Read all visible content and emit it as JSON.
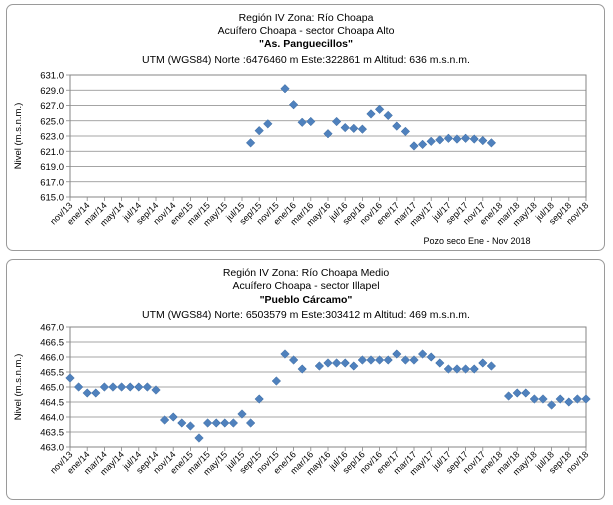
{
  "chart_data": [
    {
      "type": "scatter",
      "title_lines": [
        "Región IV  Zona: Río Choapa",
        "Acuífero Choapa - sector Choapa Alto"
      ],
      "well_name": "\"As. Panguecillos\"",
      "utm_line": "UTM (WGS84) Norte :6476460 m   Este:322861 m   Altitud: 636 m.s.n.m.",
      "ylabel": "Nivel (m.s.n.m.)",
      "xlabel": "",
      "annotation": "Pozo seco  Ene - Nov 2018",
      "ylim": [
        615.0,
        631.0
      ],
      "y_ticks": [
        "631.0",
        "629.0",
        "627.0",
        "625.0",
        "623.0",
        "621.0",
        "619.0",
        "617.0",
        "615.0"
      ],
      "x_ticks": [
        "nov/13",
        "ene/14",
        "mar/14",
        "may/14",
        "jul/14",
        "sep/14",
        "nov/14",
        "ene/15",
        "mar/15",
        "may/15",
        "jul/15",
        "sep/15",
        "nov/15",
        "ene/16",
        "mar/16",
        "may/16",
        "jul/16",
        "sep/16",
        "nov/16",
        "ene/17",
        "mar/17",
        "may/17",
        "jul/17",
        "sep/17",
        "nov/17",
        "ene/18",
        "mar/18",
        "may/18",
        "jul/18",
        "sep/18",
        "nov/18"
      ],
      "grid": true,
      "marker_color": "#4f81bd",
      "points": [
        {
          "x": "ago/15",
          "y": 622.1
        },
        {
          "x": "sep/15",
          "y": 623.7
        },
        {
          "x": "oct/15",
          "y": 624.6
        },
        {
          "x": "dic/15",
          "y": 629.2
        },
        {
          "x": "ene/16",
          "y": 627.1
        },
        {
          "x": "feb/16",
          "y": 624.8
        },
        {
          "x": "mar/16",
          "y": 624.9
        },
        {
          "x": "may/16",
          "y": 623.3
        },
        {
          "x": "jun/16",
          "y": 624.9
        },
        {
          "x": "jul/16",
          "y": 624.1
        },
        {
          "x": "ago/16",
          "y": 624.0
        },
        {
          "x": "sep/16",
          "y": 623.9
        },
        {
          "x": "oct/16",
          "y": 625.9
        },
        {
          "x": "nov/16",
          "y": 626.5
        },
        {
          "x": "dic/16",
          "y": 625.7
        },
        {
          "x": "ene/17",
          "y": 624.3
        },
        {
          "x": "feb/17",
          "y": 623.6
        },
        {
          "x": "mar/17",
          "y": 621.7
        },
        {
          "x": "abr/17",
          "y": 621.9
        },
        {
          "x": "may/17",
          "y": 622.3
        },
        {
          "x": "jun/17",
          "y": 622.5
        },
        {
          "x": "jul/17",
          "y": 622.7
        },
        {
          "x": "ago/17",
          "y": 622.6
        },
        {
          "x": "sep/17",
          "y": 622.7
        },
        {
          "x": "oct/17",
          "y": 622.6
        },
        {
          "x": "nov/17",
          "y": 622.4
        },
        {
          "x": "dic/17",
          "y": 622.1
        }
      ]
    },
    {
      "type": "scatter",
      "title_lines": [
        "Región IV  Zona: Río Choapa Medio",
        "Acuífero Choapa - sector Illapel"
      ],
      "well_name": "\"Pueblo Cárcamo\"",
      "utm_line": "UTM (WGS84) Norte: 6503579 m   Este:303412 m   Altitud: 469 m.s.n.m.",
      "ylabel": "Nivel (m.s.n.m.)",
      "xlabel": "",
      "annotation": "",
      "ylim": [
        463.0,
        467.0
      ],
      "y_ticks": [
        "467.0",
        "466.5",
        "466.0",
        "465.5",
        "465.0",
        "464.5",
        "464.0",
        "463.5",
        "463.0"
      ],
      "x_ticks": [
        "nov/13",
        "ene/14",
        "mar/14",
        "may/14",
        "jul/14",
        "sep/14",
        "nov/14",
        "ene/15",
        "mar/15",
        "may/15",
        "jul/15",
        "sep/15",
        "nov/15",
        "ene/16",
        "mar/16",
        "may/16",
        "jul/16",
        "sep/16",
        "nov/16",
        "ene/17",
        "mar/17",
        "may/17",
        "jul/17",
        "sep/17",
        "nov/17",
        "ene/18",
        "mar/18",
        "may/18",
        "jul/18",
        "sep/18",
        "nov/18"
      ],
      "grid": true,
      "marker_color": "#4f81bd",
      "points": [
        {
          "x": "nov/13",
          "y": 465.3
        },
        {
          "x": "dic/13",
          "y": 465.0
        },
        {
          "x": "ene/14",
          "y": 464.8
        },
        {
          "x": "feb/14",
          "y": 464.8
        },
        {
          "x": "mar/14",
          "y": 465.0
        },
        {
          "x": "abr/14",
          "y": 465.0
        },
        {
          "x": "may/14",
          "y": 465.0
        },
        {
          "x": "jun/14",
          "y": 465.0
        },
        {
          "x": "jul/14",
          "y": 465.0
        },
        {
          "x": "ago/14",
          "y": 465.0
        },
        {
          "x": "sep/14",
          "y": 464.9
        },
        {
          "x": "oct/14",
          "y": 463.9
        },
        {
          "x": "nov/14",
          "y": 464.0
        },
        {
          "x": "dic/14",
          "y": 463.8
        },
        {
          "x": "ene/15",
          "y": 463.7
        },
        {
          "x": "feb/15",
          "y": 463.3
        },
        {
          "x": "mar/15",
          "y": 463.8
        },
        {
          "x": "abr/15",
          "y": 463.8
        },
        {
          "x": "may/15",
          "y": 463.8
        },
        {
          "x": "jun/15",
          "y": 463.8
        },
        {
          "x": "jul/15",
          "y": 464.1
        },
        {
          "x": "ago/15",
          "y": 463.8
        },
        {
          "x": "sep/15",
          "y": 464.6
        },
        {
          "x": "nov/15",
          "y": 465.2
        },
        {
          "x": "dic/15",
          "y": 466.1
        },
        {
          "x": "ene/16",
          "y": 465.9
        },
        {
          "x": "feb/16",
          "y": 465.6
        },
        {
          "x": "abr/16",
          "y": 465.7
        },
        {
          "x": "may/16",
          "y": 465.8
        },
        {
          "x": "jun/16",
          "y": 465.8
        },
        {
          "x": "jul/16",
          "y": 465.8
        },
        {
          "x": "ago/16",
          "y": 465.7
        },
        {
          "x": "sep/16",
          "y": 465.9
        },
        {
          "x": "oct/16",
          "y": 465.9
        },
        {
          "x": "nov/16",
          "y": 465.9
        },
        {
          "x": "dic/16",
          "y": 465.9
        },
        {
          "x": "ene/17",
          "y": 466.1
        },
        {
          "x": "feb/17",
          "y": 465.9
        },
        {
          "x": "mar/17",
          "y": 465.9
        },
        {
          "x": "abr/17",
          "y": 466.1
        },
        {
          "x": "may/17",
          "y": 466.0
        },
        {
          "x": "jun/17",
          "y": 465.8
        },
        {
          "x": "jul/17",
          "y": 465.6
        },
        {
          "x": "ago/17",
          "y": 465.6
        },
        {
          "x": "sep/17",
          "y": 465.6
        },
        {
          "x": "oct/17",
          "y": 465.6
        },
        {
          "x": "nov/17",
          "y": 465.8
        },
        {
          "x": "dic/17",
          "y": 465.7
        },
        {
          "x": "feb/18",
          "y": 464.7
        },
        {
          "x": "mar/18",
          "y": 464.8
        },
        {
          "x": "abr/18",
          "y": 464.8
        },
        {
          "x": "may/18",
          "y": 464.6
        },
        {
          "x": "jun/18",
          "y": 464.6
        },
        {
          "x": "jul/18",
          "y": 464.4
        },
        {
          "x": "ago/18",
          "y": 464.6
        },
        {
          "x": "sep/18",
          "y": 464.5
        },
        {
          "x": "oct/18",
          "y": 464.6
        },
        {
          "x": "nov/18",
          "y": 464.6
        }
      ]
    }
  ]
}
